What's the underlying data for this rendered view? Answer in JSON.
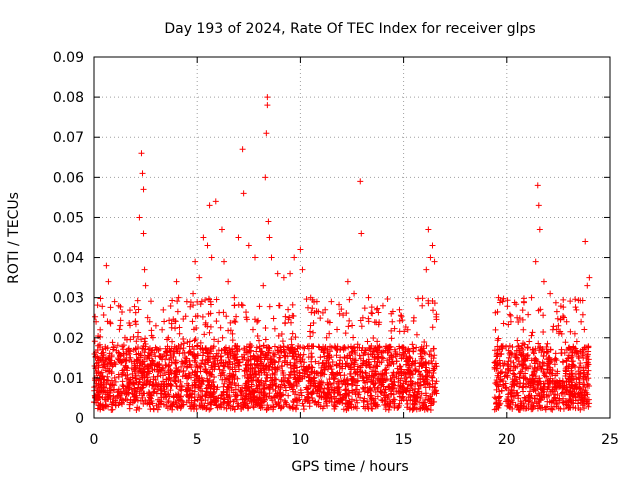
{
  "chart_data": {
    "type": "scatter",
    "title": "Day 193 of 2024, Rate Of TEC Index for receiver glps",
    "xlabel": "GPS time / hours",
    "ylabel": "ROTI / TECUs",
    "xlim": [
      0,
      25
    ],
    "ylim": [
      0,
      0.09
    ],
    "x_ticks": [
      0,
      5,
      10,
      15,
      20,
      25
    ],
    "x_tick_labels": [
      "0",
      "5",
      "10",
      "15",
      "20",
      "25"
    ],
    "y_ticks": [
      0,
      0.01,
      0.02,
      0.03,
      0.04,
      0.05,
      0.06,
      0.07,
      0.08,
      0.09
    ],
    "y_tick_labels": [
      "0",
      "0.01",
      "0.02",
      "0.03",
      "0.04",
      "0.05",
      "0.06",
      "0.07",
      "0.08",
      "0.09"
    ],
    "grid": true,
    "marker": "plus",
    "color": "#ff0000",
    "series": [
      {
        "x": [
          0.1,
          0.2,
          0.3,
          0.6,
          0.7,
          1.0,
          1.2,
          1.5,
          2.0,
          2.2,
          2.3,
          2.35,
          2.4,
          2.4,
          2.45,
          2.5,
          2.7,
          3.0,
          3.3,
          3.6,
          4.0,
          4.1,
          4.5,
          4.8,
          4.9,
          5.1,
          5.3,
          5.5,
          5.6,
          5.7,
          5.9,
          6.2,
          6.3,
          6.5,
          6.8,
          7.0,
          7.2,
          7.25,
          7.5,
          7.8,
          8.2,
          8.3,
          8.35,
          8.4,
          8.4,
          8.45,
          8.5,
          8.6,
          8.9,
          9.2,
          9.5,
          9.7,
          10.0,
          10.1,
          10.5,
          10.8,
          11.2,
          11.5,
          11.9,
          12.3,
          12.6,
          12.9,
          12.95,
          13.3,
          13.7,
          14.0,
          14.4,
          14.8,
          15.2,
          15.5,
          15.9,
          16.1,
          16.2,
          16.3,
          16.4,
          16.5,
          19.6,
          19.8,
          20.2,
          20.5,
          20.8,
          21.2,
          21.4,
          21.5,
          21.55,
          21.6,
          21.8,
          22.1,
          22.5,
          22.9,
          23.3,
          23.6,
          23.8,
          23.9,
          24.0
        ],
        "y": [
          0.024,
          0.018,
          0.022,
          0.038,
          0.034,
          0.029,
          0.028,
          0.02,
          0.024,
          0.05,
          0.066,
          0.061,
          0.046,
          0.057,
          0.037,
          0.033,
          0.024,
          0.023,
          0.022,
          0.02,
          0.034,
          0.03,
          0.029,
          0.031,
          0.039,
          0.035,
          0.045,
          0.043,
          0.053,
          0.04,
          0.054,
          0.047,
          0.039,
          0.034,
          0.03,
          0.045,
          0.067,
          0.056,
          0.043,
          0.04,
          0.033,
          0.06,
          0.071,
          0.078,
          0.08,
          0.049,
          0.045,
          0.04,
          0.036,
          0.035,
          0.036,
          0.04,
          0.042,
          0.037,
          0.03,
          0.029,
          0.027,
          0.029,
          0.026,
          0.034,
          0.031,
          0.059,
          0.046,
          0.03,
          0.027,
          0.028,
          0.026,
          0.027,
          0.022,
          0.025,
          0.028,
          0.037,
          0.047,
          0.04,
          0.043,
          0.039,
          0.03,
          0.029,
          0.024,
          0.025,
          0.022,
          0.03,
          0.039,
          0.058,
          0.053,
          0.047,
          0.034,
          0.031,
          0.023,
          0.024,
          0.021,
          0.024,
          0.044,
          0.033,
          0.035
        ]
      }
    ],
    "dense_band": {
      "segments": [
        [
          0.0,
          16.6
        ],
        [
          19.4,
          24.0
        ]
      ],
      "y_low": 0.002,
      "y_typical_high": 0.018,
      "y_spike_high": 0.03
    }
  }
}
